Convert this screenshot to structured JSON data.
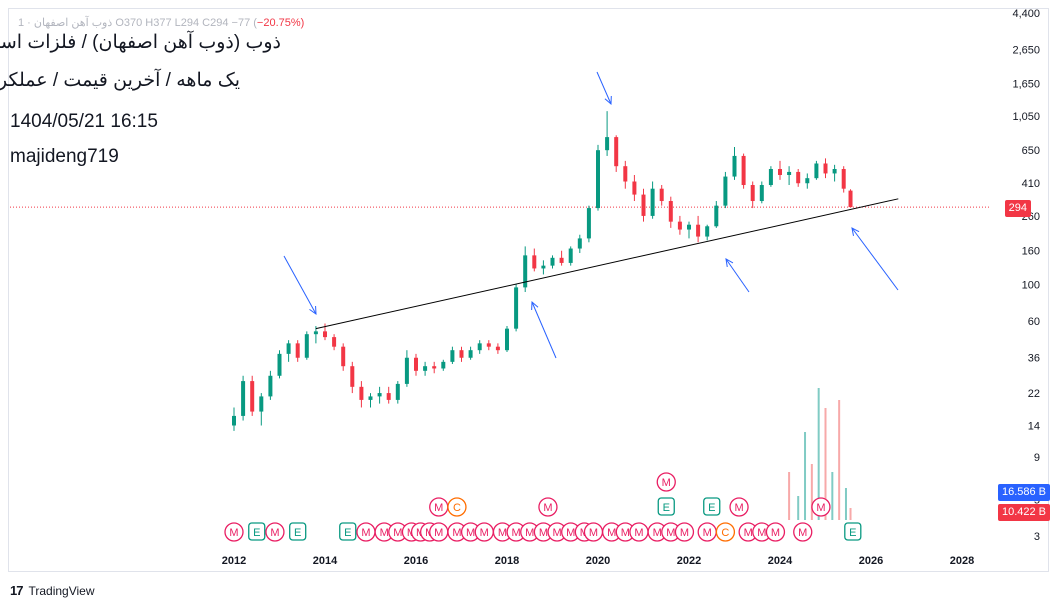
{
  "legend": {
    "text": "ذوب آهن اصفهان · 1  O370  H377  L294  C294  −77 (",
    "change": "−20.75%)"
  },
  "title": {
    "line1": "ذوب (ذوب آهن اصفهان) / فلزات اساسی",
    "line2": "یک ماهه / آخرین قیمت / عملکردی",
    "line3": "1404/05/21 16:15",
    "line4": "majideng719"
  },
  "price_tags": {
    "last": "294",
    "vol1": "16.586 B",
    "vol2": "10.422 B"
  },
  "footer": {
    "logo": "17",
    "brand": "TradingView"
  },
  "colors": {
    "up": "#089981",
    "down": "#f23645",
    "trendline": "#000000",
    "arrow": "#2962ff",
    "earnings": "#e91e63",
    "vol_up": "#80cbc4",
    "vol_down": "#f7a9a9"
  },
  "chart_data": {
    "type": "candlestick",
    "scale": "log",
    "y_ticks": [
      "4,400",
      "2,650",
      "1,650",
      "1,050",
      "650",
      "410",
      "260",
      "160",
      "100",
      "60",
      "36",
      "22",
      "14",
      "9",
      "5",
      "3"
    ],
    "y_tick_values": [
      4400,
      2650,
      1650,
      1050,
      650,
      410,
      260,
      160,
      100,
      60,
      36,
      22,
      14,
      9,
      5,
      3
    ],
    "x_ticks": [
      "2012",
      "2014",
      "2016",
      "2018",
      "2020",
      "2022",
      "2024",
      "2026",
      "2028"
    ],
    "x_tick_values": [
      2012,
      2014,
      2016,
      2018,
      2020,
      2022,
      2024,
      2026,
      2028
    ],
    "last_price": 294,
    "trendline": [
      {
        "x": 2013.8,
        "y": 54
      },
      {
        "x": 2026.6,
        "y": 330
      }
    ],
    "series": [
      {
        "x": 2012.0,
        "o": 14,
        "h": 18,
        "l": 13,
        "c": 16
      },
      {
        "x": 2012.2,
        "o": 16,
        "h": 28,
        "l": 15,
        "c": 26
      },
      {
        "x": 2012.4,
        "o": 26,
        "h": 28,
        "l": 16,
        "c": 17
      },
      {
        "x": 2012.6,
        "o": 17,
        "h": 22,
        "l": 14,
        "c": 21
      },
      {
        "x": 2012.8,
        "o": 21,
        "h": 30,
        "l": 20,
        "c": 28
      },
      {
        "x": 2013.0,
        "o": 28,
        "h": 40,
        "l": 27,
        "c": 38
      },
      {
        "x": 2013.2,
        "o": 38,
        "h": 46,
        "l": 34,
        "c": 44
      },
      {
        "x": 2013.4,
        "o": 44,
        "h": 46,
        "l": 34,
        "c": 36
      },
      {
        "x": 2013.6,
        "o": 36,
        "h": 52,
        "l": 35,
        "c": 50
      },
      {
        "x": 2013.8,
        "o": 50,
        "h": 56,
        "l": 44,
        "c": 52
      },
      {
        "x": 2014.0,
        "o": 52,
        "h": 58,
        "l": 46,
        "c": 48
      },
      {
        "x": 2014.2,
        "o": 48,
        "h": 50,
        "l": 40,
        "c": 42
      },
      {
        "x": 2014.4,
        "o": 42,
        "h": 44,
        "l": 30,
        "c": 32
      },
      {
        "x": 2014.6,
        "o": 32,
        "h": 34,
        "l": 22,
        "c": 24
      },
      {
        "x": 2014.8,
        "o": 24,
        "h": 26,
        "l": 18,
        "c": 20
      },
      {
        "x": 2015.0,
        "o": 20,
        "h": 22,
        "l": 18,
        "c": 21
      },
      {
        "x": 2015.2,
        "o": 21,
        "h": 24,
        "l": 19,
        "c": 22
      },
      {
        "x": 2015.4,
        "o": 22,
        "h": 24,
        "l": 19,
        "c": 20
      },
      {
        "x": 2015.6,
        "o": 20,
        "h": 26,
        "l": 19,
        "c": 25
      },
      {
        "x": 2015.8,
        "o": 25,
        "h": 40,
        "l": 24,
        "c": 36
      },
      {
        "x": 2016.0,
        "o": 36,
        "h": 38,
        "l": 28,
        "c": 30
      },
      {
        "x": 2016.2,
        "o": 30,
        "h": 34,
        "l": 28,
        "c": 32
      },
      {
        "x": 2016.4,
        "o": 32,
        "h": 34,
        "l": 29,
        "c": 31
      },
      {
        "x": 2016.6,
        "o": 31,
        "h": 35,
        "l": 30,
        "c": 34
      },
      {
        "x": 2016.8,
        "o": 34,
        "h": 42,
        "l": 33,
        "c": 40
      },
      {
        "x": 2017.0,
        "o": 40,
        "h": 42,
        "l": 34,
        "c": 36
      },
      {
        "x": 2017.2,
        "o": 36,
        "h": 42,
        "l": 35,
        "c": 40
      },
      {
        "x": 2017.4,
        "o": 40,
        "h": 46,
        "l": 38,
        "c": 44
      },
      {
        "x": 2017.6,
        "o": 44,
        "h": 46,
        "l": 40,
        "c": 42
      },
      {
        "x": 2017.8,
        "o": 42,
        "h": 44,
        "l": 38,
        "c": 40
      },
      {
        "x": 2018.0,
        "o": 40,
        "h": 56,
        "l": 39,
        "c": 54
      },
      {
        "x": 2018.2,
        "o": 54,
        "h": 100,
        "l": 52,
        "c": 96
      },
      {
        "x": 2018.4,
        "o": 96,
        "h": 170,
        "l": 90,
        "c": 150
      },
      {
        "x": 2018.6,
        "o": 150,
        "h": 165,
        "l": 120,
        "c": 125
      },
      {
        "x": 2018.8,
        "o": 125,
        "h": 140,
        "l": 115,
        "c": 130
      },
      {
        "x": 2019.0,
        "o": 130,
        "h": 150,
        "l": 125,
        "c": 145
      },
      {
        "x": 2019.2,
        "o": 145,
        "h": 160,
        "l": 130,
        "c": 135
      },
      {
        "x": 2019.4,
        "o": 135,
        "h": 170,
        "l": 130,
        "c": 165
      },
      {
        "x": 2019.6,
        "o": 165,
        "h": 200,
        "l": 155,
        "c": 190
      },
      {
        "x": 2019.8,
        "o": 190,
        "h": 300,
        "l": 180,
        "c": 290
      },
      {
        "x": 2020.0,
        "o": 290,
        "h": 700,
        "l": 280,
        "c": 650
      },
      {
        "x": 2020.2,
        "o": 650,
        "h": 1120,
        "l": 600,
        "c": 780
      },
      {
        "x": 2020.4,
        "o": 780,
        "h": 800,
        "l": 480,
        "c": 520
      },
      {
        "x": 2020.6,
        "o": 520,
        "h": 560,
        "l": 380,
        "c": 420
      },
      {
        "x": 2020.8,
        "o": 420,
        "h": 460,
        "l": 320,
        "c": 350
      },
      {
        "x": 2021.0,
        "o": 350,
        "h": 380,
        "l": 240,
        "c": 260
      },
      {
        "x": 2021.2,
        "o": 260,
        "h": 420,
        "l": 250,
        "c": 380
      },
      {
        "x": 2021.4,
        "o": 380,
        "h": 400,
        "l": 300,
        "c": 320
      },
      {
        "x": 2021.6,
        "o": 320,
        "h": 340,
        "l": 220,
        "c": 240
      },
      {
        "x": 2021.8,
        "o": 240,
        "h": 260,
        "l": 200,
        "c": 215
      },
      {
        "x": 2022.0,
        "o": 215,
        "h": 240,
        "l": 190,
        "c": 230
      },
      {
        "x": 2022.2,
        "o": 230,
        "h": 260,
        "l": 180,
        "c": 195
      },
      {
        "x": 2022.4,
        "o": 195,
        "h": 230,
        "l": 185,
        "c": 225
      },
      {
        "x": 2022.6,
        "o": 225,
        "h": 320,
        "l": 220,
        "c": 300
      },
      {
        "x": 2022.8,
        "o": 300,
        "h": 480,
        "l": 290,
        "c": 450
      },
      {
        "x": 2023.0,
        "o": 450,
        "h": 680,
        "l": 430,
        "c": 600
      },
      {
        "x": 2023.2,
        "o": 600,
        "h": 620,
        "l": 380,
        "c": 400
      },
      {
        "x": 2023.4,
        "o": 400,
        "h": 420,
        "l": 290,
        "c": 320
      },
      {
        "x": 2023.6,
        "o": 320,
        "h": 420,
        "l": 310,
        "c": 400
      },
      {
        "x": 2023.8,
        "o": 400,
        "h": 520,
        "l": 390,
        "c": 500
      },
      {
        "x": 2024.0,
        "o": 500,
        "h": 560,
        "l": 430,
        "c": 460
      },
      {
        "x": 2024.2,
        "o": 460,
        "h": 520,
        "l": 400,
        "c": 480
      },
      {
        "x": 2024.4,
        "o": 480,
        "h": 500,
        "l": 390,
        "c": 410
      },
      {
        "x": 2024.6,
        "o": 410,
        "h": 470,
        "l": 380,
        "c": 440
      },
      {
        "x": 2024.8,
        "o": 440,
        "h": 560,
        "l": 430,
        "c": 540
      },
      {
        "x": 2025.0,
        "o": 540,
        "h": 580,
        "l": 440,
        "c": 470
      },
      {
        "x": 2025.2,
        "o": 470,
        "h": 530,
        "l": 420,
        "c": 500
      },
      {
        "x": 2025.4,
        "o": 500,
        "h": 520,
        "l": 360,
        "c": 380
      },
      {
        "x": 2025.55,
        "o": 370,
        "h": 377,
        "l": 294,
        "c": 294
      }
    ],
    "volume_bars": [
      {
        "x": 2024.2,
        "v": 6,
        "up": false
      },
      {
        "x": 2024.4,
        "v": 3,
        "up": true
      },
      {
        "x": 2024.55,
        "v": 11,
        "up": true
      },
      {
        "x": 2024.7,
        "v": 7,
        "up": false
      },
      {
        "x": 2024.85,
        "v": 16.5,
        "up": true
      },
      {
        "x": 2025.0,
        "v": 14,
        "up": false
      },
      {
        "x": 2025.15,
        "v": 6,
        "up": true
      },
      {
        "x": 2025.3,
        "v": 15,
        "up": false
      },
      {
        "x": 2025.45,
        "v": 4,
        "up": true
      },
      {
        "x": 2025.55,
        "v": 1.5,
        "up": false
      }
    ],
    "events_row": [
      "M",
      "E",
      "M",
      "E",
      "E",
      "M",
      "M",
      "M",
      "M",
      "M",
      "M",
      "M",
      "M",
      "M",
      "M",
      "M",
      "M",
      "M",
      "M",
      "M",
      "M",
      "M",
      "M",
      "M",
      "M",
      "M",
      "M",
      "M",
      "M",
      "M",
      "C",
      "M",
      "M",
      "M",
      "M",
      "E"
    ],
    "events_row_x": [
      2012.0,
      2012.5,
      2012.9,
      2013.4,
      2014.5,
      2014.9,
      2015.3,
      2015.6,
      2015.9,
      2016.1,
      2016.3,
      2016.5,
      2016.9,
      2017.2,
      2017.5,
      2017.9,
      2018.2,
      2018.5,
      2018.8,
      2019.1,
      2019.4,
      2019.7,
      2019.9,
      2020.3,
      2020.6,
      2020.9,
      2021.3,
      2021.6,
      2021.9,
      2022.4,
      2022.8,
      2023.3,
      2023.6,
      2023.9,
      2024.5,
      2025.6
    ],
    "events_upper": [
      {
        "label": "M",
        "x": 2016.5,
        "row": 1
      },
      {
        "label": "C",
        "x": 2016.9,
        "row": 1
      },
      {
        "label": "M",
        "x": 2018.9,
        "row": 1
      },
      {
        "label": "E",
        "x": 2021.5,
        "row": 1
      },
      {
        "label": "M",
        "x": 2021.5,
        "row": 2
      },
      {
        "label": "E",
        "x": 2022.5,
        "row": 1
      },
      {
        "label": "M",
        "x": 2023.1,
        "row": 1
      },
      {
        "label": "M",
        "x": 2024.9,
        "row": 1
      }
    ]
  }
}
